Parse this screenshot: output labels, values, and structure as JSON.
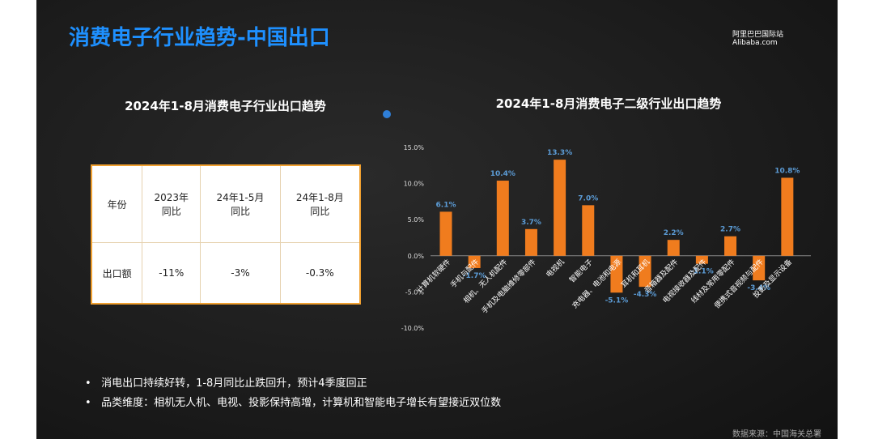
{
  "title": "消费电子行业趋势-中国出口",
  "logo": {
    "name": "阿里巴巴国际站",
    "site": "Alibaba.com"
  },
  "table_title": "2024年1-8月消费电子行业出口趋势",
  "table": {
    "header": [
      "年份",
      "2023年\n同比",
      "24年1-5月\n同比",
      "24年1-8月\n同比"
    ],
    "rows": [
      [
        "出口额",
        "-11%",
        "-3%",
        "-0.3%"
      ]
    ]
  },
  "chart_data": {
    "type": "bar",
    "title": "2024年1-8月消费电子二级行业出口趋势",
    "categories": [
      "计算机软硬件",
      "手机与配件",
      "相机、无人机配件",
      "手机及电脑维修零部件",
      "电视机",
      "智能电子",
      "充电器、电池和电源",
      "耳机和耳机",
      "音箱器及配件",
      "电视接收器及配件",
      "线材及常用零配件",
      "便携式音视频与配件",
      "投影及显示设备"
    ],
    "values": [
      6.1,
      -1.7,
      10.4,
      3.7,
      13.3,
      7.0,
      -5.1,
      -4.3,
      2.2,
      -1.1,
      2.7,
      -3.4,
      10.8
    ],
    "value_labels": [
      "6.1%",
      "-1.7%",
      "10.4%",
      "3.7%",
      "13.3%",
      "7.0%",
      "-5.1%",
      "-4.3%",
      "2.2%",
      "-1.1%",
      "2.7%",
      "-3.4%",
      "10.8%"
    ],
    "color": "#f07c1e",
    "label_color": "#5b9bd5",
    "ylim": [
      -10,
      15
    ],
    "yticks": [
      {
        "value": -10,
        "label": "-10.0%"
      },
      {
        "value": -5,
        "label": "-5.0%"
      },
      {
        "value": 0,
        "label": "0.0%"
      },
      {
        "value": 5,
        "label": "5.0%"
      },
      {
        "value": 10,
        "label": "10.0%"
      },
      {
        "value": 15,
        "label": "15.0%"
      }
    ]
  },
  "bullets": [
    "消电出口持续好转，1-8月同比止跌回升，预计4季度回正",
    "品类维度：相机无人机、电视、投影保持高增，计算机和智能电子增长有望接近双位数"
  ],
  "source": "数据来源：中国海关总署"
}
